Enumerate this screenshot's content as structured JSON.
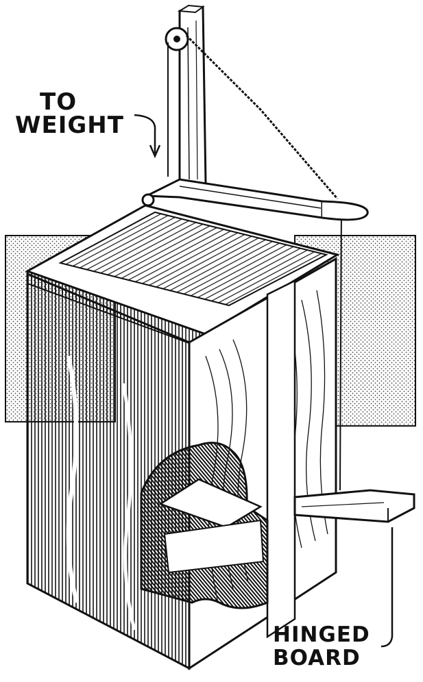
{
  "labels": {
    "to": "TO",
    "weight": "WEIGHT",
    "hinged": "HINGED",
    "board": "BOARD"
  },
  "colors": {
    "ink": "#111111",
    "paper": "#ffffff",
    "stipple": "#555555"
  }
}
